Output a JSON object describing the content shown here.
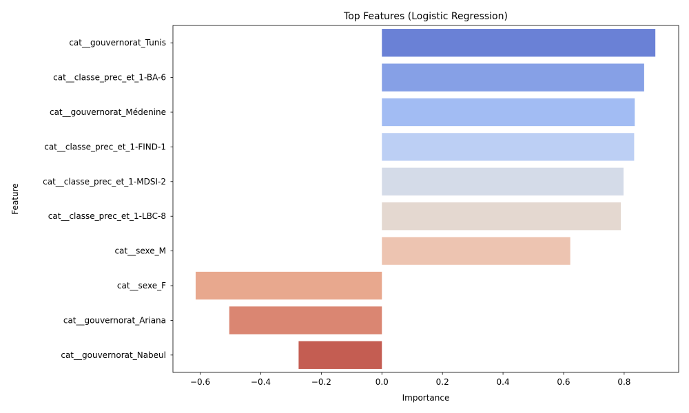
{
  "chart_data": {
    "type": "bar",
    "orientation": "horizontal",
    "title": "Top Features (Logistic Regression)",
    "xlabel": "Importance",
    "ylabel": "Feature",
    "xlim": [
      -0.69,
      0.98
    ],
    "xticks": [
      -0.6,
      -0.4,
      -0.2,
      0.0,
      0.2,
      0.4,
      0.6,
      0.8
    ],
    "xtick_labels": [
      "−0.6",
      "−0.4",
      "−0.2",
      "0.0",
      "0.2",
      "0.4",
      "0.6",
      "0.8"
    ],
    "grid": false,
    "legend": "none",
    "categories": [
      "cat__gouvernorat_Tunis",
      "cat__classe_prec_et_1-BA-6",
      "cat__gouvernorat_Médenine",
      "cat__classe_prec_et_1-FIND-1",
      "cat__classe_prec_et_1-MDSI-2",
      "cat__classe_prec_et_1-LBC-8",
      "cat__sexe_M",
      "cat__sexe_F",
      "cat__gouvernorat_Ariana",
      "cat__gouvernorat_Nabeul"
    ],
    "values": [
      0.903,
      0.866,
      0.835,
      0.833,
      0.798,
      0.789,
      0.622,
      -0.615,
      -0.504,
      -0.275
    ],
    "colors": [
      "#6a81d6",
      "#86a0e6",
      "#a2bcf3",
      "#bccff4",
      "#d4dbe8",
      "#e4d8d0",
      "#edc4b1",
      "#e8a88e",
      "#da8672",
      "#c45d52"
    ]
  }
}
